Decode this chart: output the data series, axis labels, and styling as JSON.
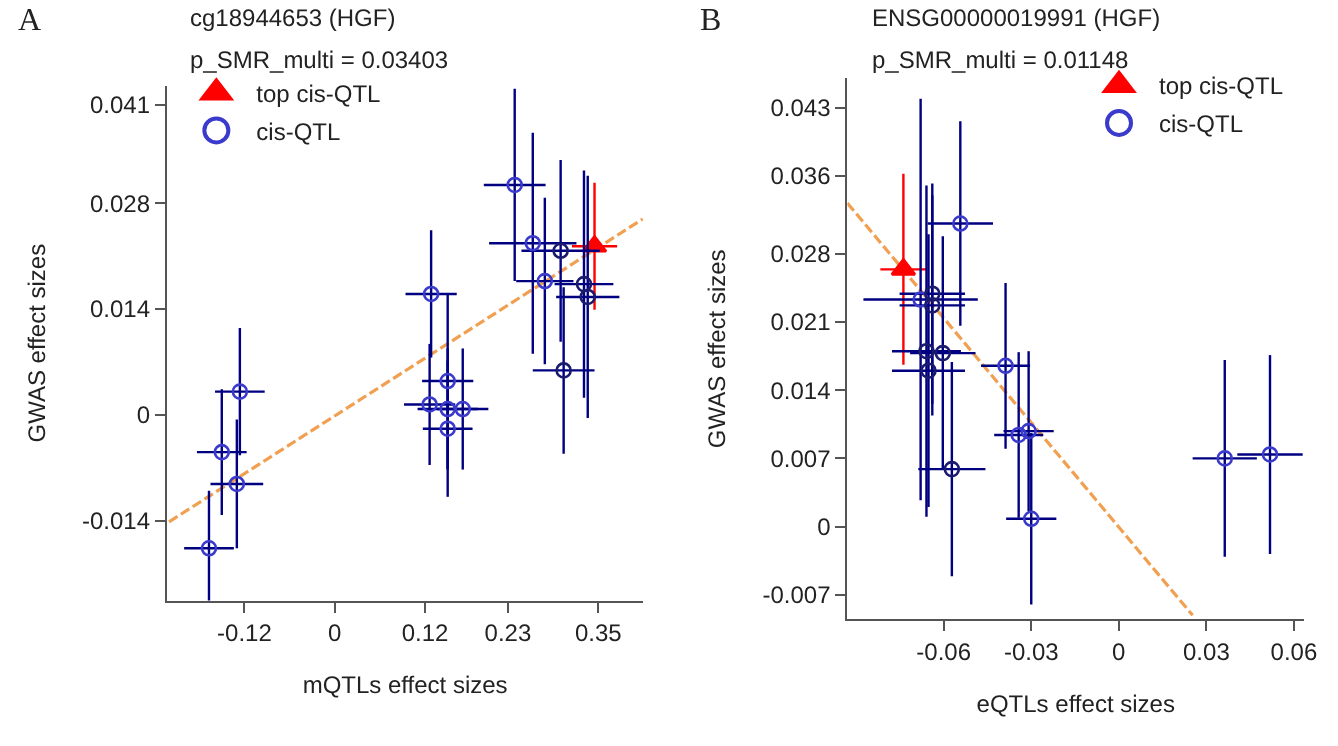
{
  "chart_data": [
    {
      "type": "scatter",
      "title": "cg18944653 (HGF)",
      "subtitle": "p_SMR_multi = 0.03403",
      "xlabel": "mQTLs effect sizes",
      "ylabel": "GWAS effect sizes",
      "annotations": [
        "A"
      ],
      "xlim": [
        -0.223,
        0.41
      ],
      "ylim": [
        -0.0245,
        0.0435
      ],
      "xticks": [
        -0.12,
        0,
        0.12,
        0.23,
        0.35
      ],
      "yticks": [
        -0.014,
        0,
        0.014,
        0.028,
        0.041
      ],
      "legend": "top left",
      "series": [
        {
          "name": "top cis-QTL",
          "marker": "triangle",
          "color": "#ff0000",
          "x": [
            0.345
          ],
          "values": [
            0.0223
          ],
          "errors": [
            0.0084
          ],
          "xerrors": [
            0.03
          ]
        },
        {
          "name": "cis-QTL",
          "marker": "circle",
          "color": "#000080",
          "colors": [
            "#3a3acc",
            "#3a3acc",
            "#1a1a6e",
            "#3a3acc",
            "#1a1a6e",
            "#1a1a6e",
            "#1a1a6e",
            "#3a3acc",
            "#3a3acc",
            "#3a3acc",
            "#3a3acc",
            "#3a3acc",
            "#3a3acc",
            "#3a3acc",
            "#3a3acc",
            "#3a3acc",
            "#3a3acc"
          ],
          "x": [
            0.239,
            0.263,
            0.3,
            0.279,
            0.331,
            0.336,
            0.304,
            0.128,
            0.15,
            0.126,
            0.15,
            0.17,
            0.15,
            -0.126,
            -0.15,
            -0.13,
            -0.167
          ],
          "values": [
            0.0304,
            0.0227,
            0.0217,
            0.0177,
            0.0173,
            0.0156,
            0.0059,
            0.016,
            0.0045,
            0.0014,
            0.0008,
            0.0008,
            -0.0018,
            0.0031,
            -0.0049,
            -0.0091,
            -0.0176
          ],
          "errors": [
            0.0127,
            0.0146,
            0.012,
            0.011,
            0.015,
            0.016,
            0.011,
            0.0084,
            0.0116,
            0.008,
            0.008,
            0.008,
            0.009,
            0.0084,
            0.0083,
            0.0085,
            0.0076
          ],
          "xerrors": [
            0.041,
            0.058,
            0.052,
            0.038,
            0.039,
            0.042,
            0.041,
            0.034,
            0.034,
            0.034,
            0.04,
            0.034,
            0.033,
            0.033,
            0.033,
            0.035,
            0.033
          ]
        },
        {
          "type": "line",
          "line_style": "dashed",
          "color": "#f0a050",
          "x": [
            -0.22,
            0.409
          ],
          "values": [
            -0.0141,
            0.0259
          ]
        }
      ]
    },
    {
      "type": "scatter",
      "title": "ENSG00000019991 (HGF)",
      "subtitle": "p_SMR_multi = 0.01148",
      "xlabel": "eQTLs effect sizes",
      "ylabel": "GWAS effect sizes",
      "annotations": [
        "B"
      ],
      "xlim": [
        -0.093,
        0.0635
      ],
      "ylim": [
        -0.0095,
        0.046
      ],
      "xticks": [
        -0.06,
        -0.03,
        0,
        0.03,
        0.06
      ],
      "yticks": [
        -0.007,
        0,
        0.007,
        0.014,
        0.021,
        0.028,
        0.036,
        0.043
      ],
      "legend": "top right",
      "series": [
        {
          "name": "top cis-QTL",
          "marker": "triangle",
          "color": "#ff0000",
          "x": [
            -0.0738
          ],
          "values": [
            0.0264
          ],
          "errors": [
            0.0098
          ],
          "xerrors": [
            0.0079
          ]
        },
        {
          "name": "cis-QTL",
          "marker": "circle",
          "color": "#000080",
          "colors": [
            "#3a3acc",
            "#3a3acc",
            "#1a1a6e",
            "#1a1a6e",
            "#1a1a6e",
            "#1a1a6e",
            "#1a1a6e",
            "#3a3acc",
            "#1a1a6e",
            "#3a3acc",
            "#3a3acc",
            "#3a3acc",
            "#3a3acc",
            "#3a3acc"
          ],
          "x": [
            -0.0543,
            -0.0679,
            -0.0639,
            -0.0639,
            -0.0659,
            -0.0603,
            -0.0652,
            -0.0388,
            -0.0572,
            -0.0343,
            -0.0309,
            -0.03,
            0.0363,
            0.0518
          ],
          "values": [
            0.0311,
            0.0233,
            0.0239,
            0.0227,
            0.018,
            0.0178,
            0.016,
            0.0165,
            0.0059,
            0.0094,
            0.0098,
            0.0008,
            0.007,
            0.0074
          ],
          "errors": [
            0.0105,
            0.0206,
            0.0113,
            0.0113,
            0.017,
            0.012,
            0.014,
            0.0085,
            0.011,
            0.0085,
            0.0082,
            0.0088,
            0.0101,
            0.0102
          ],
          "xerrors": [
            0.0112,
            0.0196,
            0.0112,
            0.0112,
            0.0118,
            0.0112,
            0.0125,
            0.0084,
            0.0115,
            0.0084,
            0.0086,
            0.0086,
            0.011,
            0.0112
          ]
        },
        {
          "type": "line",
          "line_style": "dashed",
          "color": "#f0a050",
          "x": [
            -0.093,
            0.0253
          ],
          "values": [
            0.0332,
            -0.0091
          ]
        }
      ]
    }
  ]
}
